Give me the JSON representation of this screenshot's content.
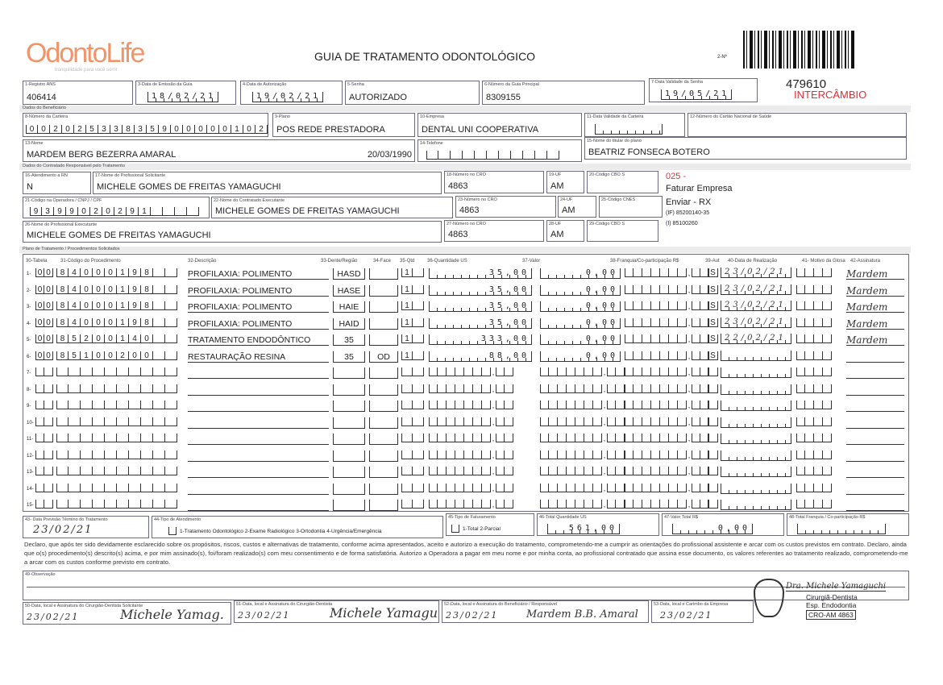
{
  "header": {
    "logo_text": "OdontoLife",
    "logo_tagline": "tranquilidade para você sorrir",
    "logo_color": "#f0956a",
    "title": "GUIA DE TRATAMENTO ODONTOLÓGICO",
    "guide_number_label": "2-Nº",
    "guide_number": "479610",
    "intercambio": "INTERCÂMBIO",
    "accent_color": "#e0303a"
  },
  "fields": {
    "registro_ans": {
      "label": "1-Registro ANS",
      "value": "406414"
    },
    "data_emissao": {
      "label": "3-Data de Emissão da Guia",
      "value": "18/02/21"
    },
    "data_autorizacao": {
      "label": "4-Data de Autorização",
      "value": "19/02/21"
    },
    "senha": {
      "label": "5-Senha",
      "value": "AUTORIZADO"
    },
    "guia_principal": {
      "label": "6-Número da Guia Principal",
      "value": "8309155"
    },
    "validade_senha": {
      "label": "7-Data Validade da Senha",
      "value": "19/05/21"
    },
    "section_beneficiario": "Dados do Beneficiário",
    "carteira": {
      "label": "8-Número da Carteira",
      "value": "00202533835900000102"
    },
    "plano": {
      "label": "9-Plano",
      "value": "POS REDE PRESTADORA"
    },
    "empresa": {
      "label": "10-Empresa",
      "value": "DENTAL UNI  COOPERATIVA"
    },
    "validade_carteira": {
      "label": "11-Data Validade da Carteira",
      "value": ""
    },
    "cns": {
      "label": "12-Número do Cartão Nacional de Saúde",
      "value": ""
    },
    "nome": {
      "label": "13-Nome",
      "value": "MARDEM BERG BEZERRA AMARAL",
      "birth": "20/03/1990"
    },
    "telefone": {
      "label": "14-Telefone",
      "value": ""
    },
    "titular": {
      "label": "15-Nome do titular do plano",
      "value": "BEATRIZ FONSECA BOTERO"
    },
    "section_contratado": "Dados do Contratado Responsável pelo Tratamento",
    "rn": {
      "label": "16-Atendimento a RN",
      "value": "N"
    },
    "prof_solicitante": {
      "label": "17-Nome do Profissional Solicitante",
      "value": "MICHELE GOMES DE FREITAS YAMAGUCHI"
    },
    "cro18": {
      "label": "18-Número no CRO",
      "value": "4863"
    },
    "uf19": {
      "label": "19-UF",
      "value": "AM"
    },
    "cbo20": {
      "label": "20-Código CBO S",
      "value": ""
    },
    "codigo_operadora": {
      "label": "21-Código na Operadora / CNPJ / CPF",
      "value": "9399020291"
    },
    "contratado_exec": {
      "label": "22-Nome do Contratado Executante",
      "value": "MICHELE GOMES DE FREITAS YAMAGUCHI"
    },
    "cro23": {
      "label": "23-Número no CRO",
      "value": "4863"
    },
    "uf24": {
      "label": "24-UF",
      "value": "AM"
    },
    "cnes25": {
      "label": "25-Código CNES",
      "value": ""
    },
    "prof_exec": {
      "label": "26-Nome do Profissional Executante",
      "value": "MICHELE GOMES DE FREITAS YAMAGUCHI"
    },
    "cro27": {
      "label": "27-Número no CRO",
      "value": "4863"
    },
    "uf28": {
      "label": "28-UF",
      "value": "AM"
    },
    "cbo29": {
      "label": "29-Código CBO S",
      "value": ""
    },
    "notes": {
      "code": "025 -",
      "faturar": "Faturar Empresa",
      "enviar": "Enviar - RX",
      "if_code": "(IF) 85200140-35",
      "i_code": "(I) 85100260"
    }
  },
  "plan": {
    "section": "Plano de Tratamento / Procedimentos Solicitados",
    "headers": {
      "tabela": "30-Tabela",
      "codigo": "31-Código do Procedimento",
      "descricao": "32-Descrição",
      "dente": "33-Dente/Região",
      "face": "34-Face",
      "qtd": "35-Qtd",
      "us": "36-Quantidade US",
      "valor": "37-Valor",
      "franquia": "38-Franquia/Co-participação R$",
      "aut": "39-Aut",
      "data": "40-Data de Realização",
      "glosa": "41- Motivo da Glosa",
      "assinatura": "42-Assinatura"
    },
    "procedures": [
      {
        "tabela": "00",
        "codigo": "84000198",
        "descricao": "PROFILAXIA: POLIMENTO",
        "dente": "HASD",
        "face": "",
        "qtd": "1",
        "us": "35,00",
        "valor": "0,00",
        "aut": "S",
        "data": "23/02/21",
        "assinatura": "Mardem"
      },
      {
        "tabela": "00",
        "codigo": "84000198",
        "descricao": "PROFILAXIA: POLIMENTO",
        "dente": "HASE",
        "face": "",
        "qtd": "1",
        "us": "35,00",
        "valor": "0,00",
        "aut": "S",
        "data": "23/02/21",
        "assinatura": "Mardem"
      },
      {
        "tabela": "00",
        "codigo": "84000198",
        "descricao": "PROFILAXIA: POLIMENTO",
        "dente": "HAIE",
        "face": "",
        "qtd": "1",
        "us": "35,00",
        "valor": "0,00",
        "aut": "S",
        "data": "23/02/21",
        "assinatura": "Mardem"
      },
      {
        "tabela": "00",
        "codigo": "84000198",
        "descricao": "PROFILAXIA: POLIMENTO",
        "dente": "HAID",
        "face": "",
        "qtd": "1",
        "us": "35,00",
        "valor": "0,00",
        "aut": "S",
        "data": "23/02/21",
        "assinatura": "Mardem"
      },
      {
        "tabela": "00",
        "codigo": "85200140",
        "descricao": "TRATAMENTO ENDODÔNTICO",
        "dente": "35",
        "face": "",
        "qtd": "1",
        "us": "333,00",
        "valor": "0,00",
        "aut": "S",
        "data": "22/02/21",
        "assinatura": "Mardem"
      },
      {
        "tabela": "00",
        "codigo": "85100200",
        "descricao": "RESTAURAÇÃO RESINA",
        "dente": "35",
        "face": "OD",
        "qtd": "1",
        "us": "88,00",
        "valor": "0,00",
        "aut": "S",
        "data": "",
        "assinatura": ""
      }
    ]
  },
  "footer": {
    "previsao": {
      "label": "43- Data Previsão Término do Tratamento",
      "value": "23/02/21"
    },
    "tipo_atendimento": {
      "label": "44-Tipo de Atendimento",
      "options": "1-Tratamento Odontológico  2-Exame Radiológico  3-Ortodontia  4-Urgência/Emergência"
    },
    "tipo_faturamento": {
      "label": "45-Tipo de Faturamento",
      "options": "1-Total  2-Parcial"
    },
    "total_us": {
      "label": "46-Total Quantidade US",
      "value": "561,00"
    },
    "valor_total": {
      "label": "47-Valor Total R$",
      "value": "0,00"
    },
    "total_franquia": {
      "label": "48-Total Franquia / Co-participação R$",
      "value": ""
    },
    "declaration": "Declaro, que após ter sido devidamente esclarecido sobre os propósitos, riscos, custos e alternativas de tratamento, conforme acima apresentados, aceito e autorizo a execução do tratamento, comprometendo-me a cumprir as orientações do profissional assistente e arcar com os custos previstos em contrato. Declaro, ainda que o(s) procedimento(s) descrito(s) acima, e por mim assinado(s), foi/foram realizado(s) com meu consentimento e de forma satisfatória. Autorizo a Operadora a pagar em meu nome e por minha conta, ao profissional contratado que assina esse documento, os valores referentes ao tratamento realizado, comprometendo-me a arcar com os custos conforme previsto em contrato.",
    "observacao": {
      "label": "49-Observação",
      "value": ""
    },
    "sig50": {
      "label": "50-Data, local e Assinatura do Cirurgião-Dentista Solicitante",
      "date": "23/02/21",
      "signature": "Michele Yamag."
    },
    "sig51": {
      "label": "51-Data, local e Assinatura do Cirurgião-Dentista",
      "date": "23/02/21",
      "signature": "Michele Yamagu"
    },
    "sig52": {
      "label": "52-Data, local e Assinatura do Beneficiário / Responsável",
      "date": "23/02/21",
      "signature": "Mardem B.B. Amaral"
    },
    "sig53": {
      "label": "53-Data, local e Carimbo da Empresa",
      "date": "23/02/21"
    },
    "stamp": {
      "name": "Dra. Michele Yamaguchi",
      "title": "Cirurgiã-Dentista",
      "spec": "Esp. Endodontia",
      "cro": "CRO-AM 4863"
    }
  }
}
